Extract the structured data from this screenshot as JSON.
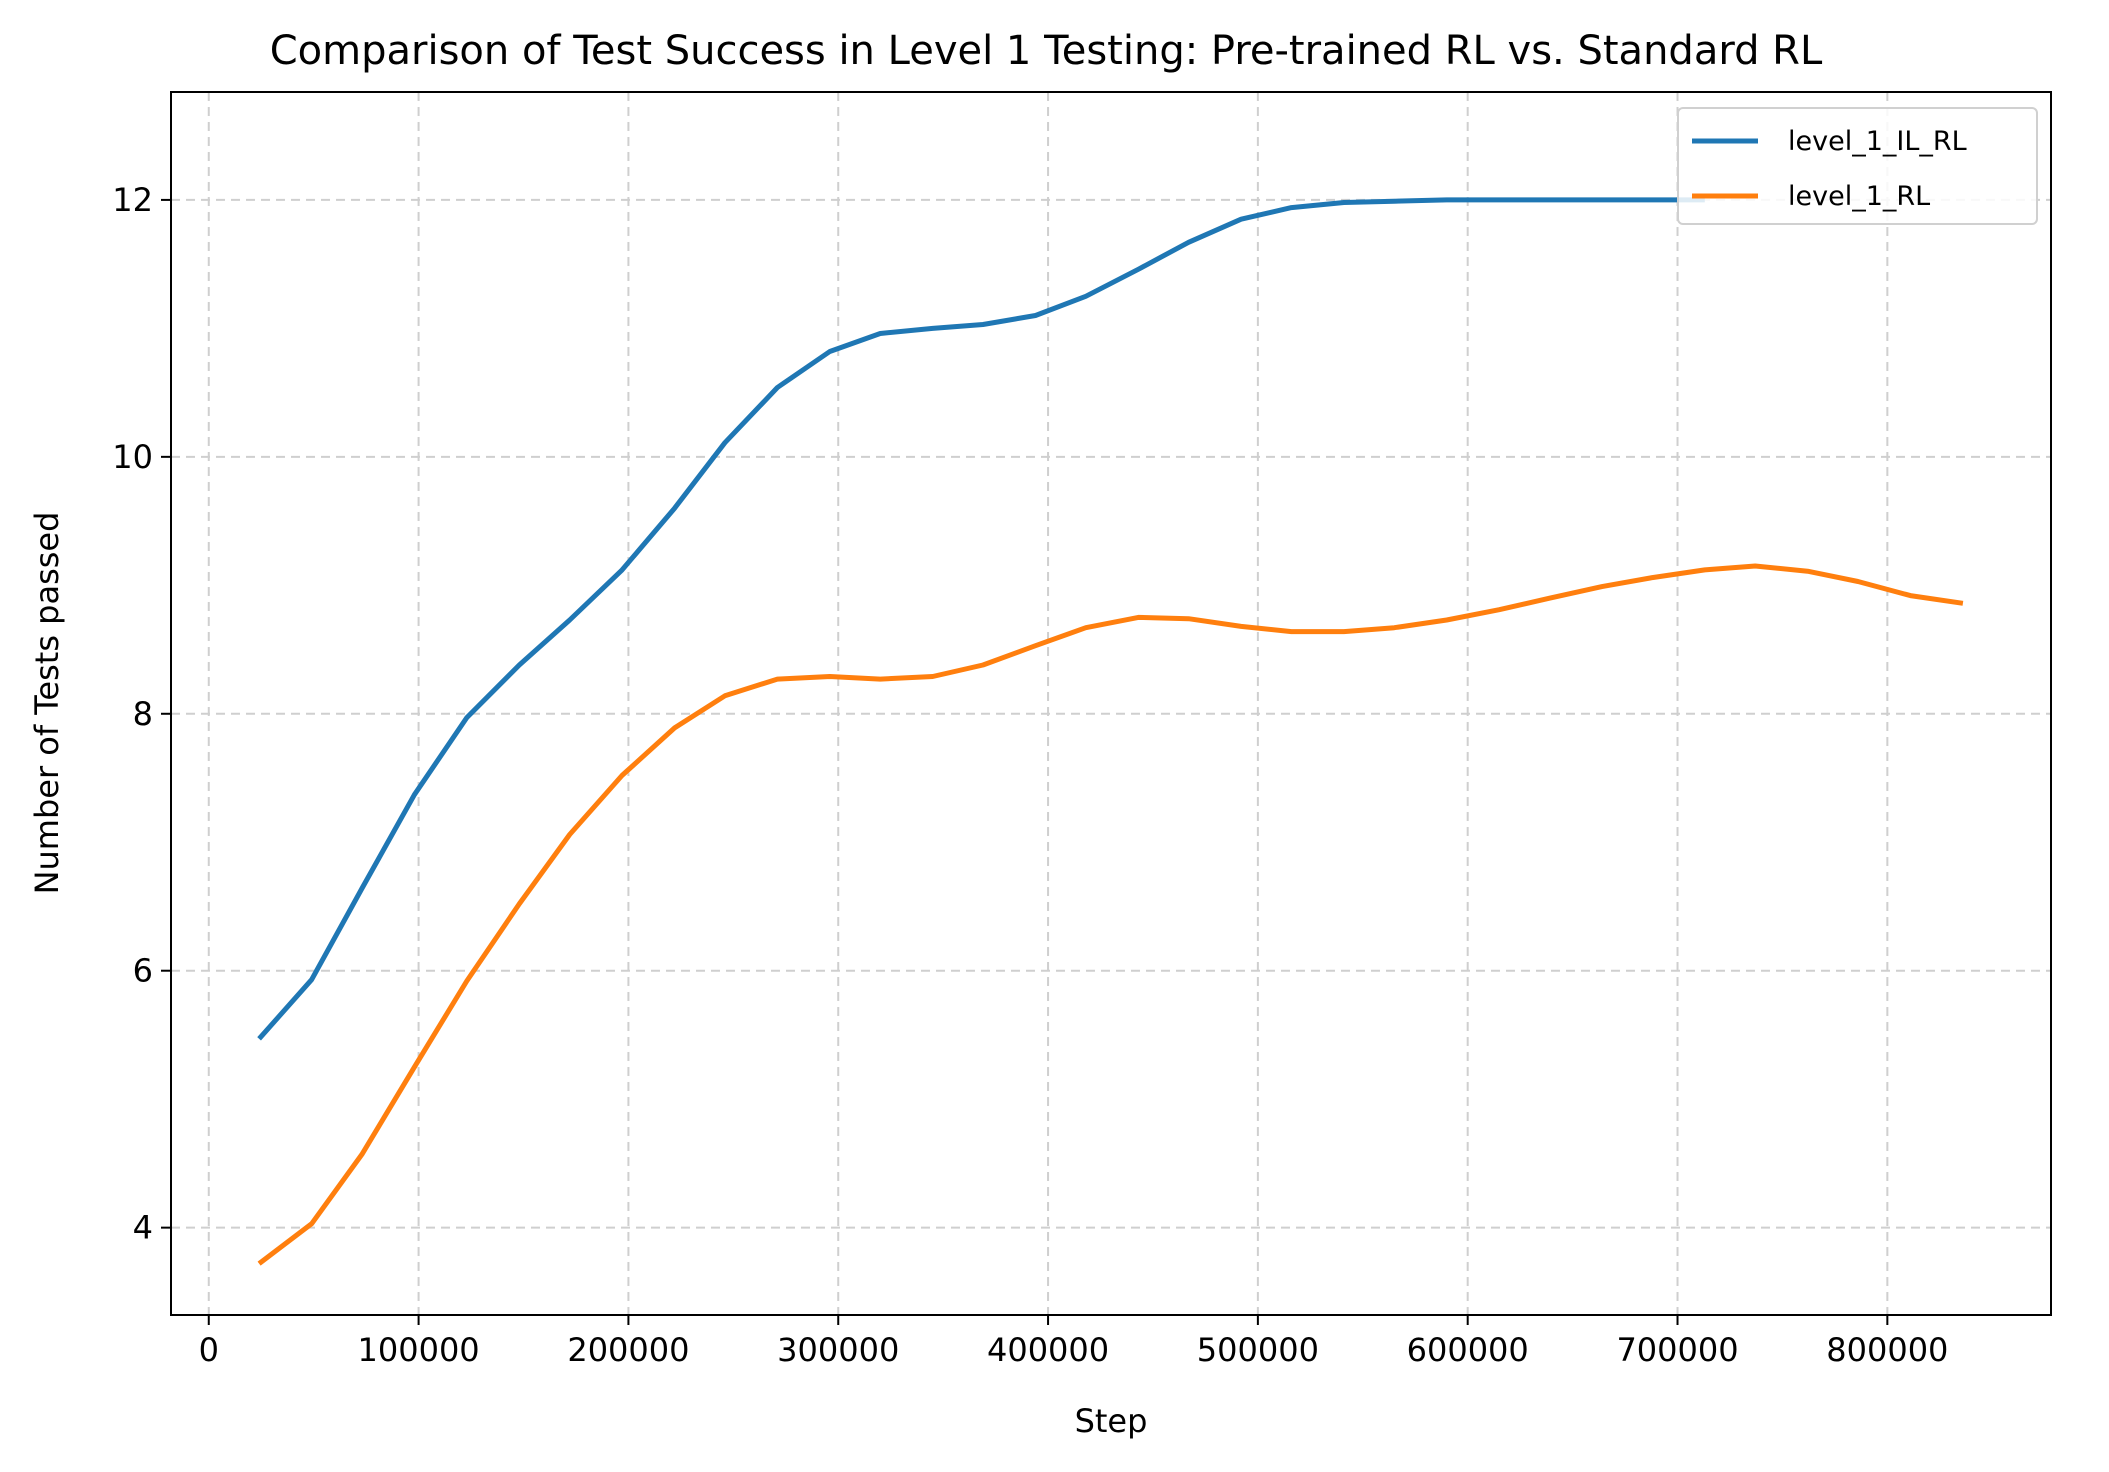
{
  "chart_data": {
    "type": "line",
    "title": "Comparison of Test Success in Level 1 Testing: Pre-trained RL vs. Standard RL",
    "xlabel": "Step",
    "ylabel": "Number of Tests passed",
    "xlim": [
      -18000,
      878000
    ],
    "ylim": [
      3.32,
      12.84
    ],
    "xticks": [
      0,
      100000,
      200000,
      300000,
      400000,
      500000,
      600000,
      700000,
      800000
    ],
    "yticks": [
      4,
      6,
      8,
      10,
      12
    ],
    "grid": true,
    "legend_position": "upper-right",
    "series": [
      {
        "name": "level_1_IL_RL",
        "color": "#1f77b4",
        "x": [
          24000,
          49000,
          73000,
          98000,
          123000,
          148000,
          172000,
          197000,
          222000,
          246000,
          271000,
          296000,
          320000,
          345000,
          369000,
          394000,
          418000,
          443000,
          467000,
          492000,
          516000,
          541000,
          565000,
          590000,
          615000,
          639000,
          664000,
          688000,
          713000
        ],
        "values": [
          5.47,
          5.93,
          6.64,
          7.37,
          7.97,
          8.38,
          8.73,
          9.12,
          9.6,
          10.11,
          10.54,
          10.82,
          10.96,
          11.0,
          11.03,
          11.1,
          11.25,
          11.46,
          11.67,
          11.85,
          11.94,
          11.98,
          11.99,
          12.0,
          12.0,
          12.0,
          12.0,
          12.0,
          12.0
        ]
      },
      {
        "name": "level_1_RL",
        "color": "#ff7f0e",
        "x": [
          24000,
          49000,
          73000,
          98000,
          123000,
          148000,
          172000,
          197000,
          222000,
          246000,
          271000,
          296000,
          320000,
          345000,
          369000,
          394000,
          418000,
          443000,
          467000,
          492000,
          516000,
          541000,
          565000,
          590000,
          615000,
          639000,
          664000,
          688000,
          713000,
          737000,
          762000,
          786000,
          811000,
          836000
        ],
        "values": [
          3.72,
          4.03,
          4.57,
          5.25,
          5.92,
          6.52,
          7.06,
          7.52,
          7.89,
          8.14,
          8.27,
          8.29,
          8.27,
          8.29,
          8.38,
          8.53,
          8.67,
          8.75,
          8.74,
          8.68,
          8.64,
          8.64,
          8.67,
          8.73,
          8.81,
          8.9,
          8.99,
          9.06,
          9.12,
          9.15,
          9.11,
          9.03,
          8.92,
          8.86
        ]
      }
    ]
  }
}
